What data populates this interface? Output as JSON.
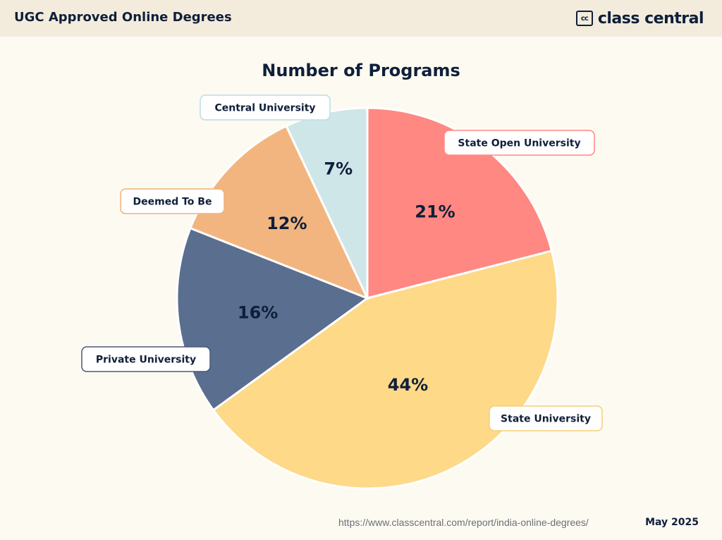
{
  "header": {
    "title": "UGC Approved Online Degrees",
    "logo_mark": "cc",
    "logo_text": "class central"
  },
  "chart_data": {
    "type": "pie",
    "title": "Number of Programs",
    "slices": [
      {
        "label": "State Open University",
        "value": 21,
        "display": "21%",
        "color": "#ff8882"
      },
      {
        "label": "State University",
        "value": 44,
        "display": "44%",
        "color": "#fdd988"
      },
      {
        "label": "Private University",
        "value": 16,
        "display": "16%",
        "color": "#5a6e8f"
      },
      {
        "label": "Deemed To Be",
        "value": 12,
        "display": "12%",
        "color": "#f3b57f"
      },
      {
        "label": "Central University",
        "value": 7,
        "display": "7%",
        "color": "#cfe6e9"
      }
    ]
  },
  "footer": {
    "url": "https://www.classcentral.com/report/india-online-degrees/",
    "date": "May 2025"
  }
}
